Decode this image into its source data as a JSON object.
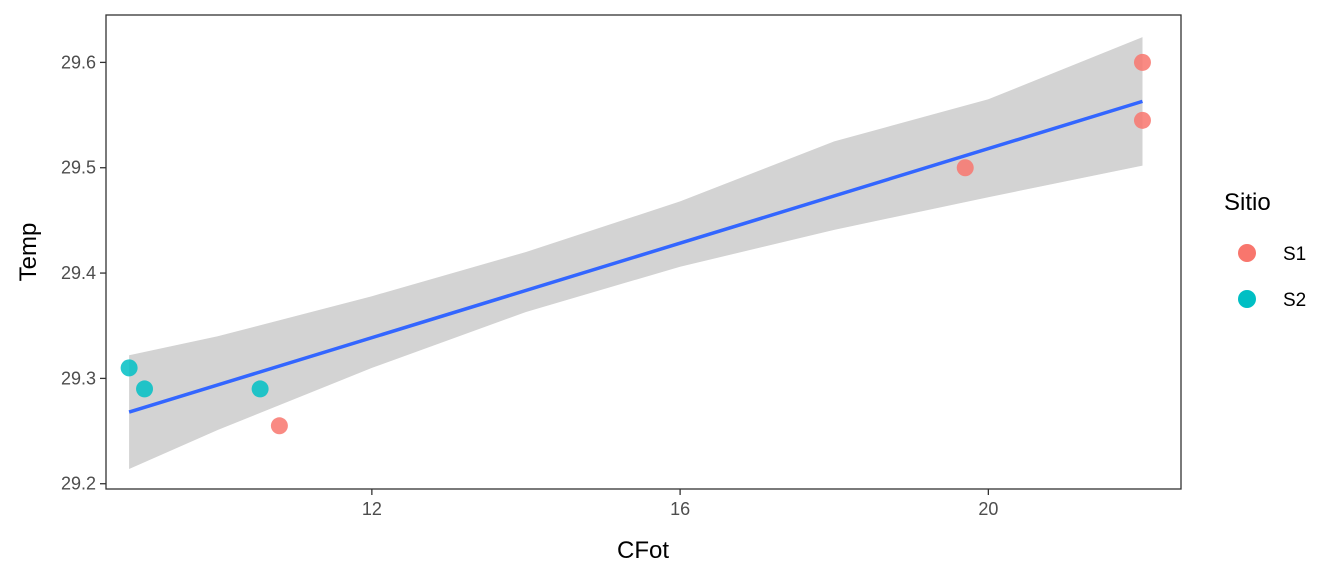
{
  "chart_data": {
    "type": "scatter",
    "xlabel": "CFot",
    "ylabel": "Temp",
    "xlim": [
      8.55,
      22.5
    ],
    "ylim": [
      29.195,
      29.645
    ],
    "x_ticks": [
      12,
      16,
      20
    ],
    "y_ticks": [
      29.2,
      29.3,
      29.4,
      29.5,
      29.6
    ],
    "x_tick_labels": [
      "12",
      "16",
      "20"
    ],
    "y_tick_labels": [
      "29.2",
      "29.3",
      "29.4",
      "29.5",
      "29.6"
    ],
    "grid": false,
    "legend": {
      "title": "Sitio",
      "placement": "right",
      "entries": [
        {
          "label": "S1",
          "color": "#F8766D"
        },
        {
          "label": "S2",
          "color": "#00BFC4"
        }
      ]
    },
    "series": [
      {
        "name": "S1",
        "color": "#F8766D",
        "points": [
          {
            "x": 10.8,
            "y": 29.255
          },
          {
            "x": 19.7,
            "y": 29.5
          },
          {
            "x": 22.0,
            "y": 29.6
          },
          {
            "x": 22.0,
            "y": 29.545
          }
        ]
      },
      {
        "name": "S2",
        "color": "#00BFC4",
        "points": [
          {
            "x": 8.85,
            "y": 29.31
          },
          {
            "x": 9.05,
            "y": 29.29
          },
          {
            "x": 10.55,
            "y": 29.29
          }
        ]
      }
    ],
    "fit": {
      "method": "lm",
      "color": "#3366FF",
      "band_color": "#D3D3D3",
      "x_start": 8.85,
      "x_end": 22.0,
      "y_start": 29.268,
      "y_end": 29.563,
      "band": [
        {
          "x": 8.85,
          "lower": 29.214,
          "upper": 29.322
        },
        {
          "x": 10.0,
          "lower": 29.251,
          "upper": 29.34
        },
        {
          "x": 12.0,
          "lower": 29.31,
          "upper": 29.378
        },
        {
          "x": 14.0,
          "lower": 29.363,
          "upper": 29.42
        },
        {
          "x": 16.0,
          "lower": 29.406,
          "upper": 29.468
        },
        {
          "x": 18.0,
          "lower": 29.441,
          "upper": 29.525
        },
        {
          "x": 20.0,
          "lower": 29.472,
          "upper": 29.565
        },
        {
          "x": 22.0,
          "lower": 29.502,
          "upper": 29.624
        }
      ]
    }
  }
}
